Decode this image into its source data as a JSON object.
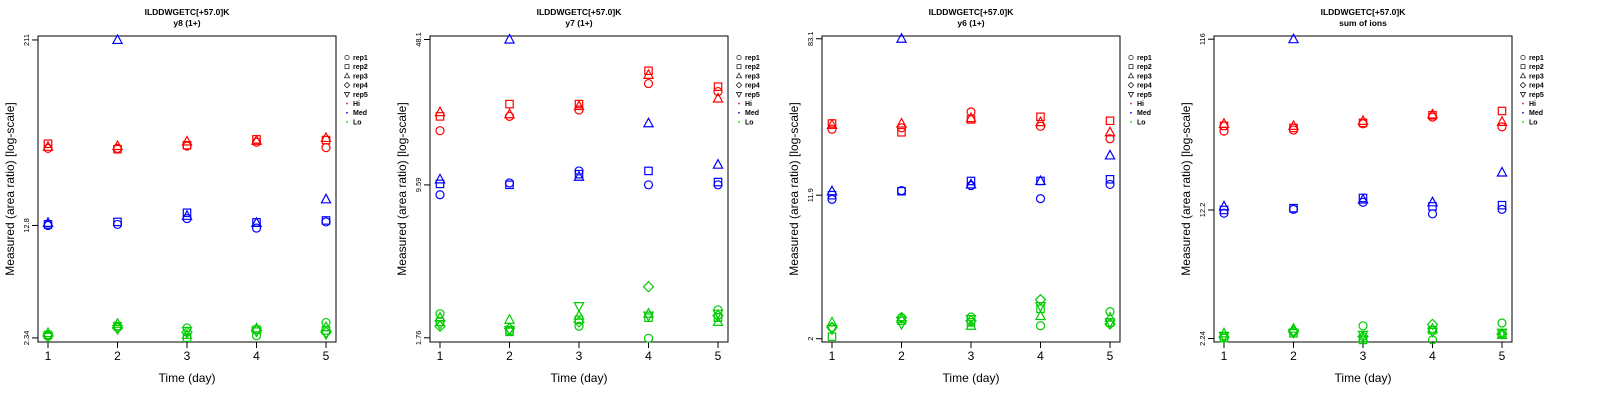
{
  "chart_data": [
    {
      "type": "scatter",
      "title": "ILDDWGETC[+57.0]K",
      "subtitle": "y8 (1+)",
      "xlabel": "Time (day)",
      "ylabel": "Measured (area ratio) [log-scale]",
      "y_scale": "log",
      "ylim": [
        2.2,
        224
      ],
      "yticks": [
        {
          "value": 2.34,
          "label": "2.34"
        },
        {
          "value": 12.8,
          "label": "12.8"
        },
        {
          "value": 211,
          "label": "211"
        }
      ],
      "xticks": [
        1,
        2,
        3,
        4,
        5
      ],
      "legend_position": "right",
      "series": [
        {
          "group": "Hi",
          "rep": "rep1",
          "x": [
            1,
            2,
            3,
            4,
            5
          ],
          "y": [
            41.0,
            41.0,
            42.5,
            45.0,
            41.5
          ]
        },
        {
          "group": "Hi",
          "rep": "rep2",
          "x": [
            1,
            2,
            3,
            4,
            5
          ],
          "y": [
            44.0,
            40.5,
            43.0,
            47.0,
            46.5
          ]
        },
        {
          "group": "Hi",
          "rep": "rep3",
          "x": [
            1,
            2,
            3,
            4,
            5
          ],
          "y": [
            42.0,
            42.5,
            45.5,
            46.0,
            48.0
          ]
        },
        {
          "group": "Med",
          "rep": "rep1",
          "x": [
            1,
            2,
            3,
            4,
            5
          ],
          "y": [
            12.8,
            13.0,
            14.2,
            12.3,
            13.5
          ]
        },
        {
          "group": "Med",
          "rep": "rep2",
          "x": [
            1,
            2,
            3,
            4,
            5
          ],
          "y": [
            13.0,
            13.5,
            15.5,
            13.4,
            13.8
          ]
        },
        {
          "group": "Med",
          "rep": "rep3",
          "x": [
            1,
            2,
            3,
            4,
            5
          ],
          "y": [
            13.3,
            211,
            14.8,
            13.3,
            19.0
          ]
        },
        {
          "group": "Lo",
          "rep": "rep1",
          "x": [
            1,
            2,
            3,
            4,
            5
          ],
          "y": [
            2.4,
            2.75,
            2.72,
            2.42,
            2.95
          ]
        },
        {
          "group": "Lo",
          "rep": "rep2",
          "x": [
            1,
            2,
            3,
            4,
            5
          ],
          "y": [
            2.45,
            2.8,
            2.35,
            2.65,
            2.62
          ]
        },
        {
          "group": "Lo",
          "rep": "rep3",
          "x": [
            1,
            2,
            3,
            4,
            5
          ],
          "y": [
            2.52,
            2.9,
            2.45,
            2.7,
            2.75
          ]
        },
        {
          "group": "Lo",
          "rep": "rep4",
          "x": [
            1,
            2,
            3,
            4,
            5
          ],
          "y": [
            2.42,
            2.72,
            2.55,
            2.62,
            2.55
          ]
        },
        {
          "group": "Lo",
          "rep": "rep5",
          "x": [
            1,
            2,
            3,
            4,
            5
          ],
          "y": [
            2.38,
            2.68,
            2.6,
            2.58,
            2.48
          ]
        }
      ]
    },
    {
      "type": "scatter",
      "title": "ILDDWGETC[+57.0]K",
      "subtitle": "y7 (1+)",
      "xlabel": "Time (day)",
      "ylabel": "Measured (area ratio) [log-scale]",
      "y_scale": "log",
      "ylim": [
        1.68,
        50
      ],
      "yticks": [
        {
          "value": 1.76,
          "label": "1.76"
        },
        {
          "value": 9.59,
          "label": "9.59"
        },
        {
          "value": 48.1,
          "label": "48.1"
        }
      ],
      "xticks": [
        1,
        2,
        3,
        4,
        5
      ],
      "legend_position": "right",
      "series": [
        {
          "group": "Hi",
          "rep": "rep1",
          "x": [
            1,
            2,
            3,
            4,
            5
          ],
          "y": [
            17.5,
            20.5,
            22.0,
            29.5,
            27.0
          ]
        },
        {
          "group": "Hi",
          "rep": "rep2",
          "x": [
            1,
            2,
            3,
            4,
            5
          ],
          "y": [
            20.5,
            23.5,
            23.5,
            34.0,
            28.5
          ]
        },
        {
          "group": "Hi",
          "rep": "rep3",
          "x": [
            1,
            2,
            3,
            4,
            5
          ],
          "y": [
            21.5,
            21.0,
            23.0,
            32.5,
            25.0
          ]
        },
        {
          "group": "Med",
          "rep": "rep1",
          "x": [
            1,
            2,
            3,
            4,
            5
          ],
          "y": [
            8.6,
            9.8,
            11.2,
            9.6,
            9.6
          ]
        },
        {
          "group": "Med",
          "rep": "rep2",
          "x": [
            1,
            2,
            3,
            4,
            5
          ],
          "y": [
            9.7,
            9.6,
            10.8,
            11.2,
            9.9
          ]
        },
        {
          "group": "Med",
          "rep": "rep3",
          "x": [
            1,
            2,
            3,
            4,
            5
          ],
          "y": [
            10.2,
            48.1,
            10.5,
            19.0,
            12.0
          ]
        },
        {
          "group": "Lo",
          "rep": "rep1",
          "x": [
            1,
            2,
            3,
            4,
            5
          ],
          "y": [
            2.3,
            1.9,
            2.0,
            1.75,
            2.4
          ]
        },
        {
          "group": "Lo",
          "rep": "rep2",
          "x": [
            1,
            2,
            3,
            4,
            5
          ],
          "y": [
            2.1,
            1.88,
            2.15,
            2.2,
            2.2
          ]
        },
        {
          "group": "Lo",
          "rep": "rep3",
          "x": [
            1,
            2,
            3,
            4,
            5
          ],
          "y": [
            2.2,
            2.15,
            2.25,
            2.3,
            2.1
          ]
        },
        {
          "group": "Lo",
          "rep": "rep4",
          "x": [
            1,
            2,
            3,
            4,
            5
          ],
          "y": [
            2.0,
            1.95,
            2.1,
            3.1,
            2.25
          ]
        },
        {
          "group": "Lo",
          "rep": "rep5",
          "x": [
            1,
            2,
            3,
            4,
            5
          ],
          "y": [
            2.05,
            1.92,
            2.5,
            2.25,
            2.3
          ]
        }
      ]
    },
    {
      "type": "scatter",
      "title": "ILDDWGETC[+57.0]K",
      "subtitle": "y6 (1+)",
      "xlabel": "Time (day)",
      "ylabel": "Measured (area ratio) [log-scale]",
      "y_scale": "log",
      "ylim": [
        1.92,
        86
      ],
      "yticks": [
        {
          "value": 2,
          "label": "2"
        },
        {
          "value": 11.9,
          "label": "11.9"
        },
        {
          "value": 83.1,
          "label": "83.1"
        }
      ],
      "xticks": [
        1,
        2,
        3,
        4,
        5
      ],
      "legend_position": "right",
      "series": [
        {
          "group": "Hi",
          "rep": "rep1",
          "x": [
            1,
            2,
            3,
            4,
            5
          ],
          "y": [
            27.0,
            27.5,
            33.5,
            28.0,
            24.0
          ]
        },
        {
          "group": "Hi",
          "rep": "rep2",
          "x": [
            1,
            2,
            3,
            4,
            5
          ],
          "y": [
            29.0,
            26.0,
            30.5,
            31.5,
            30.0
          ]
        },
        {
          "group": "Hi",
          "rep": "rep3",
          "x": [
            1,
            2,
            3,
            4,
            5
          ],
          "y": [
            28.5,
            29.0,
            31.0,
            29.5,
            26.0
          ]
        },
        {
          "group": "Med",
          "rep": "rep1",
          "x": [
            1,
            2,
            3,
            4,
            5
          ],
          "y": [
            11.3,
            12.6,
            13.4,
            11.4,
            13.6
          ]
        },
        {
          "group": "Med",
          "rep": "rep2",
          "x": [
            1,
            2,
            3,
            4,
            5
          ],
          "y": [
            11.9,
            12.5,
            14.2,
            14.2,
            14.5
          ]
        },
        {
          "group": "Med",
          "rep": "rep3",
          "x": [
            1,
            2,
            3,
            4,
            5
          ],
          "y": [
            12.5,
            83.1,
            13.6,
            14.2,
            19.5
          ]
        },
        {
          "group": "Lo",
          "rep": "rep1",
          "x": [
            1,
            2,
            3,
            4,
            5
          ],
          "y": [
            2.3,
            2.6,
            2.62,
            2.35,
            2.8
          ]
        },
        {
          "group": "Lo",
          "rep": "rep2",
          "x": [
            1,
            2,
            3,
            4,
            5
          ],
          "y": [
            2.05,
            2.5,
            2.45,
            2.9,
            2.45
          ]
        },
        {
          "group": "Lo",
          "rep": "rep3",
          "x": [
            1,
            2,
            3,
            4,
            5
          ],
          "y": [
            2.45,
            2.55,
            2.35,
            2.65,
            2.6
          ]
        },
        {
          "group": "Lo",
          "rep": "rep4",
          "x": [
            1,
            2,
            3,
            4,
            5
          ],
          "y": [
            2.3,
            2.6,
            2.5,
            3.25,
            2.4
          ]
        },
        {
          "group": "Lo",
          "rep": "rep5",
          "x": [
            1,
            2,
            3,
            4,
            5
          ],
          "y": [
            2.25,
            2.4,
            2.55,
            3.0,
            2.45
          ]
        }
      ]
    },
    {
      "type": "scatter",
      "title": "ILDDWGETC[+57.0]K",
      "subtitle": "sum of ions",
      "xlabel": "Time (day)",
      "ylabel": "Measured (area ratio) [log-scale]",
      "y_scale": "log",
      "ylim": [
        2.14,
        121
      ],
      "yticks": [
        {
          "value": 2.24,
          "label": "2.24"
        },
        {
          "value": 12.2,
          "label": "12.2"
        },
        {
          "value": 116,
          "label": "116"
        }
      ],
      "xticks": [
        1,
        2,
        3,
        4,
        5
      ],
      "legend_position": "right",
      "series": [
        {
          "group": "Hi",
          "rep": "rep1",
          "x": [
            1,
            2,
            3,
            4,
            5
          ],
          "y": [
            34.5,
            35.0,
            38.0,
            41.5,
            36.5
          ]
        },
        {
          "group": "Hi",
          "rep": "rep2",
          "x": [
            1,
            2,
            3,
            4,
            5
          ],
          "y": [
            37.0,
            36.0,
            38.5,
            42.5,
            45.0
          ]
        },
        {
          "group": "Hi",
          "rep": "rep3",
          "x": [
            1,
            2,
            3,
            4,
            5
          ],
          "y": [
            38.0,
            37.0,
            39.5,
            43.0,
            39.0
          ]
        },
        {
          "group": "Med",
          "rep": "rep1",
          "x": [
            1,
            2,
            3,
            4,
            5
          ],
          "y": [
            11.7,
            12.3,
            13.5,
            11.6,
            12.3
          ]
        },
        {
          "group": "Med",
          "rep": "rep2",
          "x": [
            1,
            2,
            3,
            4,
            5
          ],
          "y": [
            12.2,
            12.5,
            14.3,
            12.8,
            13.0
          ]
        },
        {
          "group": "Med",
          "rep": "rep3",
          "x": [
            1,
            2,
            3,
            4,
            5
          ],
          "y": [
            12.8,
            116,
            14.0,
            13.5,
            20.0
          ]
        },
        {
          "group": "Lo",
          "rep": "rep1",
          "x": [
            1,
            2,
            3,
            4,
            5
          ],
          "y": [
            2.3,
            2.45,
            2.65,
            2.2,
            2.75
          ]
        },
        {
          "group": "Lo",
          "rep": "rep2",
          "x": [
            1,
            2,
            3,
            4,
            5
          ],
          "y": [
            2.25,
            2.4,
            2.2,
            2.5,
            2.4
          ]
        },
        {
          "group": "Lo",
          "rep": "rep3",
          "x": [
            1,
            2,
            3,
            4,
            5
          ],
          "y": [
            2.4,
            2.55,
            2.25,
            2.55,
            2.35
          ]
        },
        {
          "group": "Lo",
          "rep": "rep4",
          "x": [
            1,
            2,
            3,
            4,
            5
          ],
          "y": [
            2.28,
            2.48,
            2.3,
            2.7,
            2.38
          ]
        },
        {
          "group": "Lo",
          "rep": "rep5",
          "x": [
            1,
            2,
            3,
            4,
            5
          ],
          "y": [
            2.32,
            2.42,
            2.35,
            2.45,
            2.42
          ]
        }
      ]
    }
  ],
  "legend": {
    "entries": [
      {
        "label": "rep1",
        "marker": "circle",
        "color": "#000000"
      },
      {
        "label": "rep2",
        "marker": "square",
        "color": "#000000"
      },
      {
        "label": "rep3",
        "marker": "triangle",
        "color": "#000000"
      },
      {
        "label": "rep4",
        "marker": "diamond",
        "color": "#000000"
      },
      {
        "label": "rep5",
        "marker": "triangle-down",
        "color": "#000000"
      },
      {
        "label": "Hi",
        "marker": "dot",
        "color": "#ff0000"
      },
      {
        "label": "Med",
        "marker": "dot",
        "color": "#0000ff"
      },
      {
        "label": "Lo",
        "marker": "dot",
        "color": "#00cc00"
      }
    ]
  },
  "colors": {
    "Hi": "#ff0000",
    "Med": "#0000ff",
    "Lo": "#00cc00"
  },
  "markers": {
    "rep1": "circle",
    "rep2": "square",
    "rep3": "triangle",
    "rep4": "diamond",
    "rep5": "triangle-down"
  }
}
